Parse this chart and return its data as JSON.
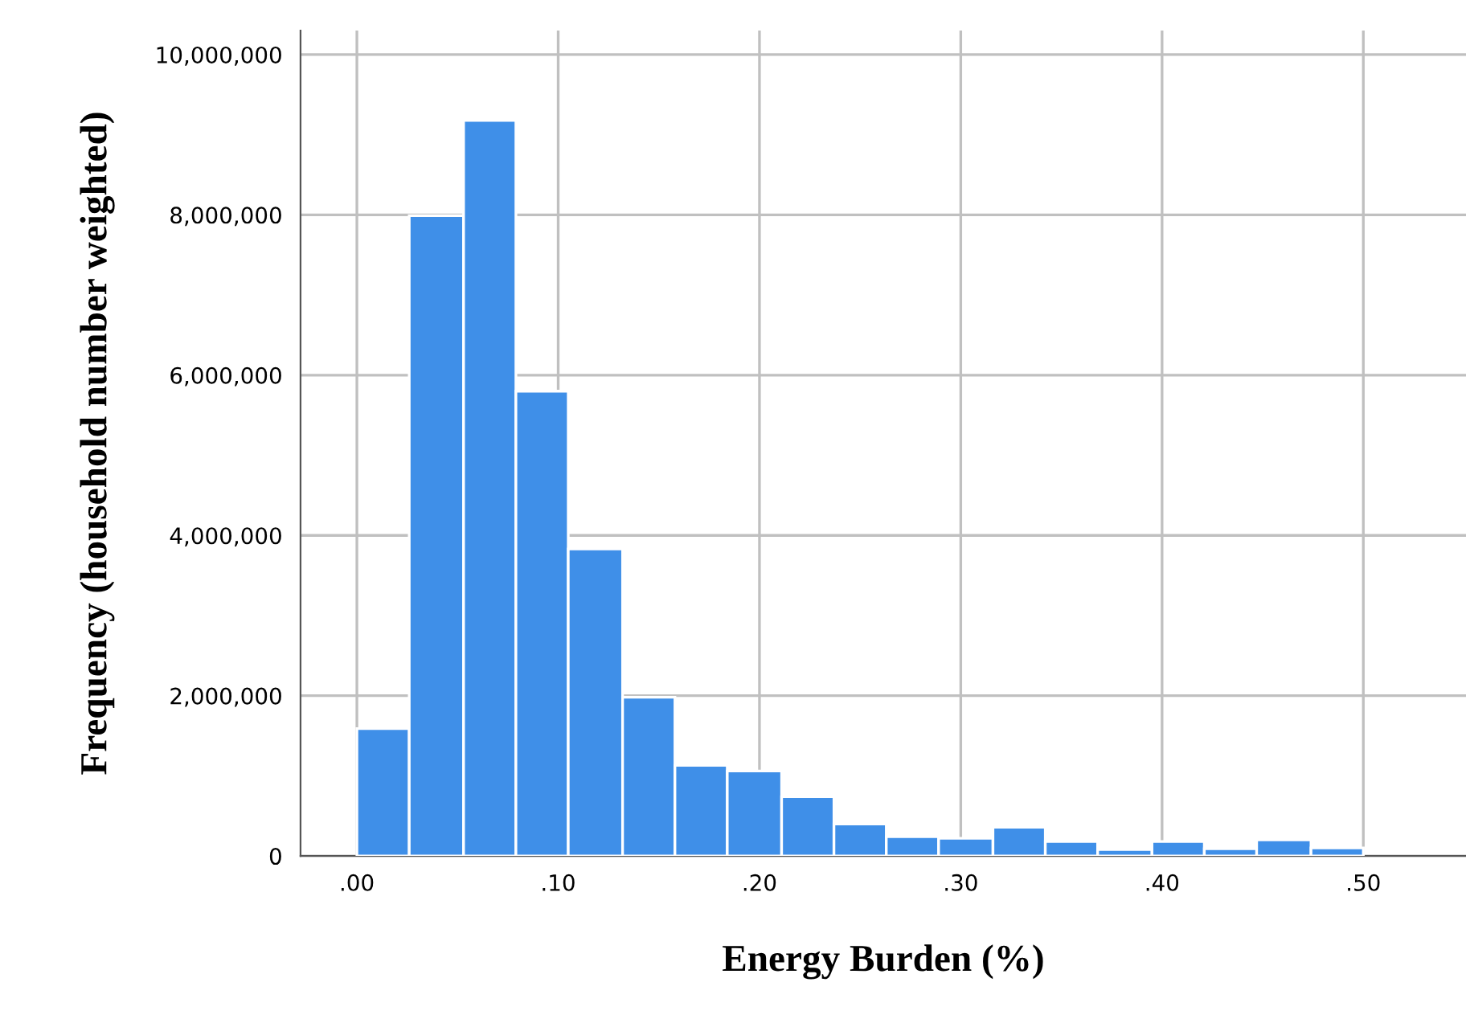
{
  "chart_data": {
    "type": "histogram",
    "xlabel": "Energy Burden (%)",
    "ylabel": "Frequency (household number weighted)",
    "bins": [
      0,
      0.026,
      0.053,
      0.079,
      0.105,
      0.132,
      0.158,
      0.184,
      0.211,
      0.237,
      0.263,
      0.289,
      0.316,
      0.342,
      0.368,
      0.395,
      0.421,
      0.447,
      0.474,
      0.5
    ],
    "values": [
      1590000,
      7990000,
      9180000,
      5800000,
      3830000,
      1980000,
      1130000,
      1060000,
      740000,
      400000,
      240000,
      220000,
      360000,
      180000,
      80000,
      180000,
      90000,
      200000,
      100000
    ],
    "color": "#3f8fe8",
    "xlim": [
      -0.028,
      0.551
    ],
    "ylim": [
      0,
      10300000
    ],
    "xticks": [
      {
        "value": 0,
        "label": ".00"
      },
      {
        "value": 0.1,
        "label": ".10"
      },
      {
        "value": 0.2,
        "label": ".20"
      },
      {
        "value": 0.3,
        "label": ".30"
      },
      {
        "value": 0.4,
        "label": ".40"
      },
      {
        "value": 0.5,
        "label": ".50"
      }
    ],
    "yticks": [
      {
        "value": 0,
        "label": "0"
      },
      {
        "value": 2000000,
        "label": "2,000,000"
      },
      {
        "value": 4000000,
        "label": "4,000,000"
      },
      {
        "value": 6000000,
        "label": "6,000,000"
      },
      {
        "value": 8000000,
        "label": "8,000,000"
      },
      {
        "value": 10000000,
        "label": "10,000,000"
      }
    ],
    "grid": true
  }
}
